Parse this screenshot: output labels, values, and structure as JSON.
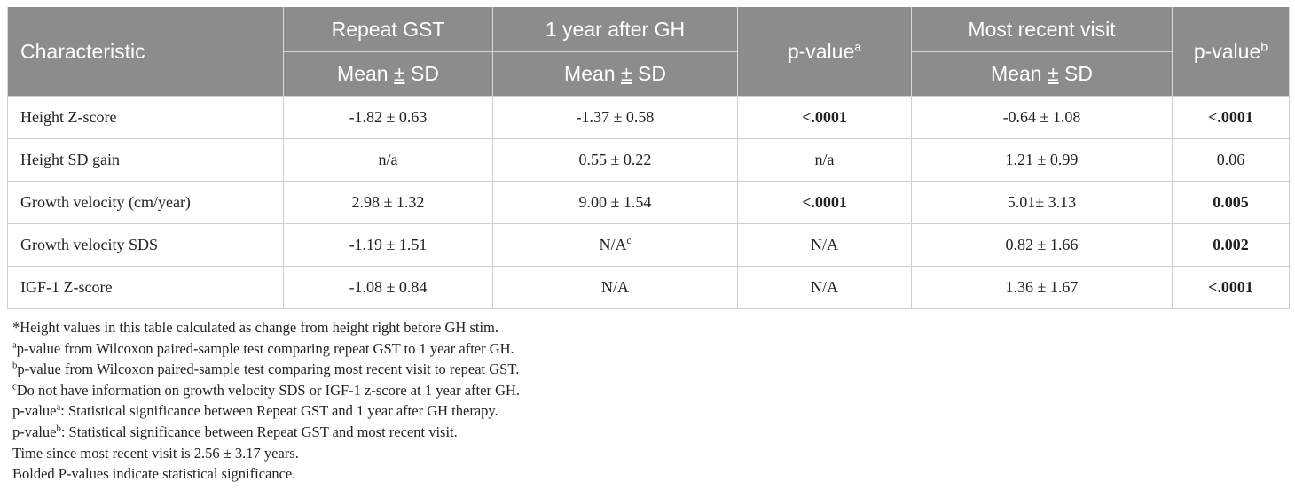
{
  "table": {
    "headers": {
      "characteristic": "Characteristic",
      "repeat_gst": "Repeat GST",
      "one_year": "1 year after GH",
      "p_value_a": "p-value",
      "p_value_a_sup": "a",
      "most_recent": "Most recent visit",
      "p_value_b": "p-value",
      "p_value_b_sup": "b",
      "mean_sd_1": "Mean ",
      "mean_sd_2": "Mean ",
      "mean_sd_3": "Mean ",
      "pm_symbol": "±",
      "sd_text": " SD"
    },
    "rows": [
      {
        "label": "Height Z-score",
        "repeat": "-1.82 ± 0.63",
        "one_year": "-1.37 ± 0.58",
        "one_year_sup": "",
        "p_a": "<.0001",
        "recent": "-0.64 ± 1.08",
        "p_b": "<.0001"
      },
      {
        "label": "Height SD gain",
        "repeat": "n/a",
        "one_year": "0.55 ± 0.22",
        "one_year_sup": "",
        "p_a": "n/a",
        "recent": "1.21 ± 0.99",
        "p_b": "0.06"
      },
      {
        "label": "Growth velocity (cm/year)",
        "repeat": "2.98 ± 1.32",
        "one_year": "9.00 ± 1.54",
        "one_year_sup": "",
        "p_a": "<.0001",
        "recent": "5.01± 3.13",
        "p_b": "0.005"
      },
      {
        "label": "Growth velocity SDS",
        "repeat": "-1.19 ± 1.51",
        "one_year": "N/A",
        "one_year_sup": "c",
        "p_a": "N/A",
        "recent": "0.82 ± 1.66",
        "p_b": "0.002"
      },
      {
        "label": "IGF-1 Z-score",
        "repeat": "-1.08 ± 0.84",
        "one_year": "N/A",
        "one_year_sup": "",
        "p_a": "N/A",
        "recent": "1.36 ± 1.67",
        "p_b": "<.0001"
      }
    ]
  },
  "footnotes": {
    "star": "*Height values in this table calculated as change from height right before GH stim.",
    "a_sup": "a",
    "a": "p-value from Wilcoxon paired-sample test comparing repeat GST to 1 year after GH.",
    "b_sup": "b",
    "b": "p-value from Wilcoxon paired-sample test comparing most recent visit to repeat GST.",
    "c_sup": "c",
    "c": "Do not have information on growth velocity SDS or IGF-1 z-score at 1 year after GH.",
    "pa_label": "p-value",
    "pa_sup": "a",
    "pa_text": ": Statistical significance between Repeat GST and 1 year after GH therapy.",
    "pb_label": "p-value",
    "pb_sup": "b",
    "pb_text": ": Statistical significance between Repeat GST and most recent visit.",
    "time": "Time since most recent visit is 2.56 ± 3.17 years.",
    "bolded": "Bolded P-values indicate statistical significance."
  }
}
